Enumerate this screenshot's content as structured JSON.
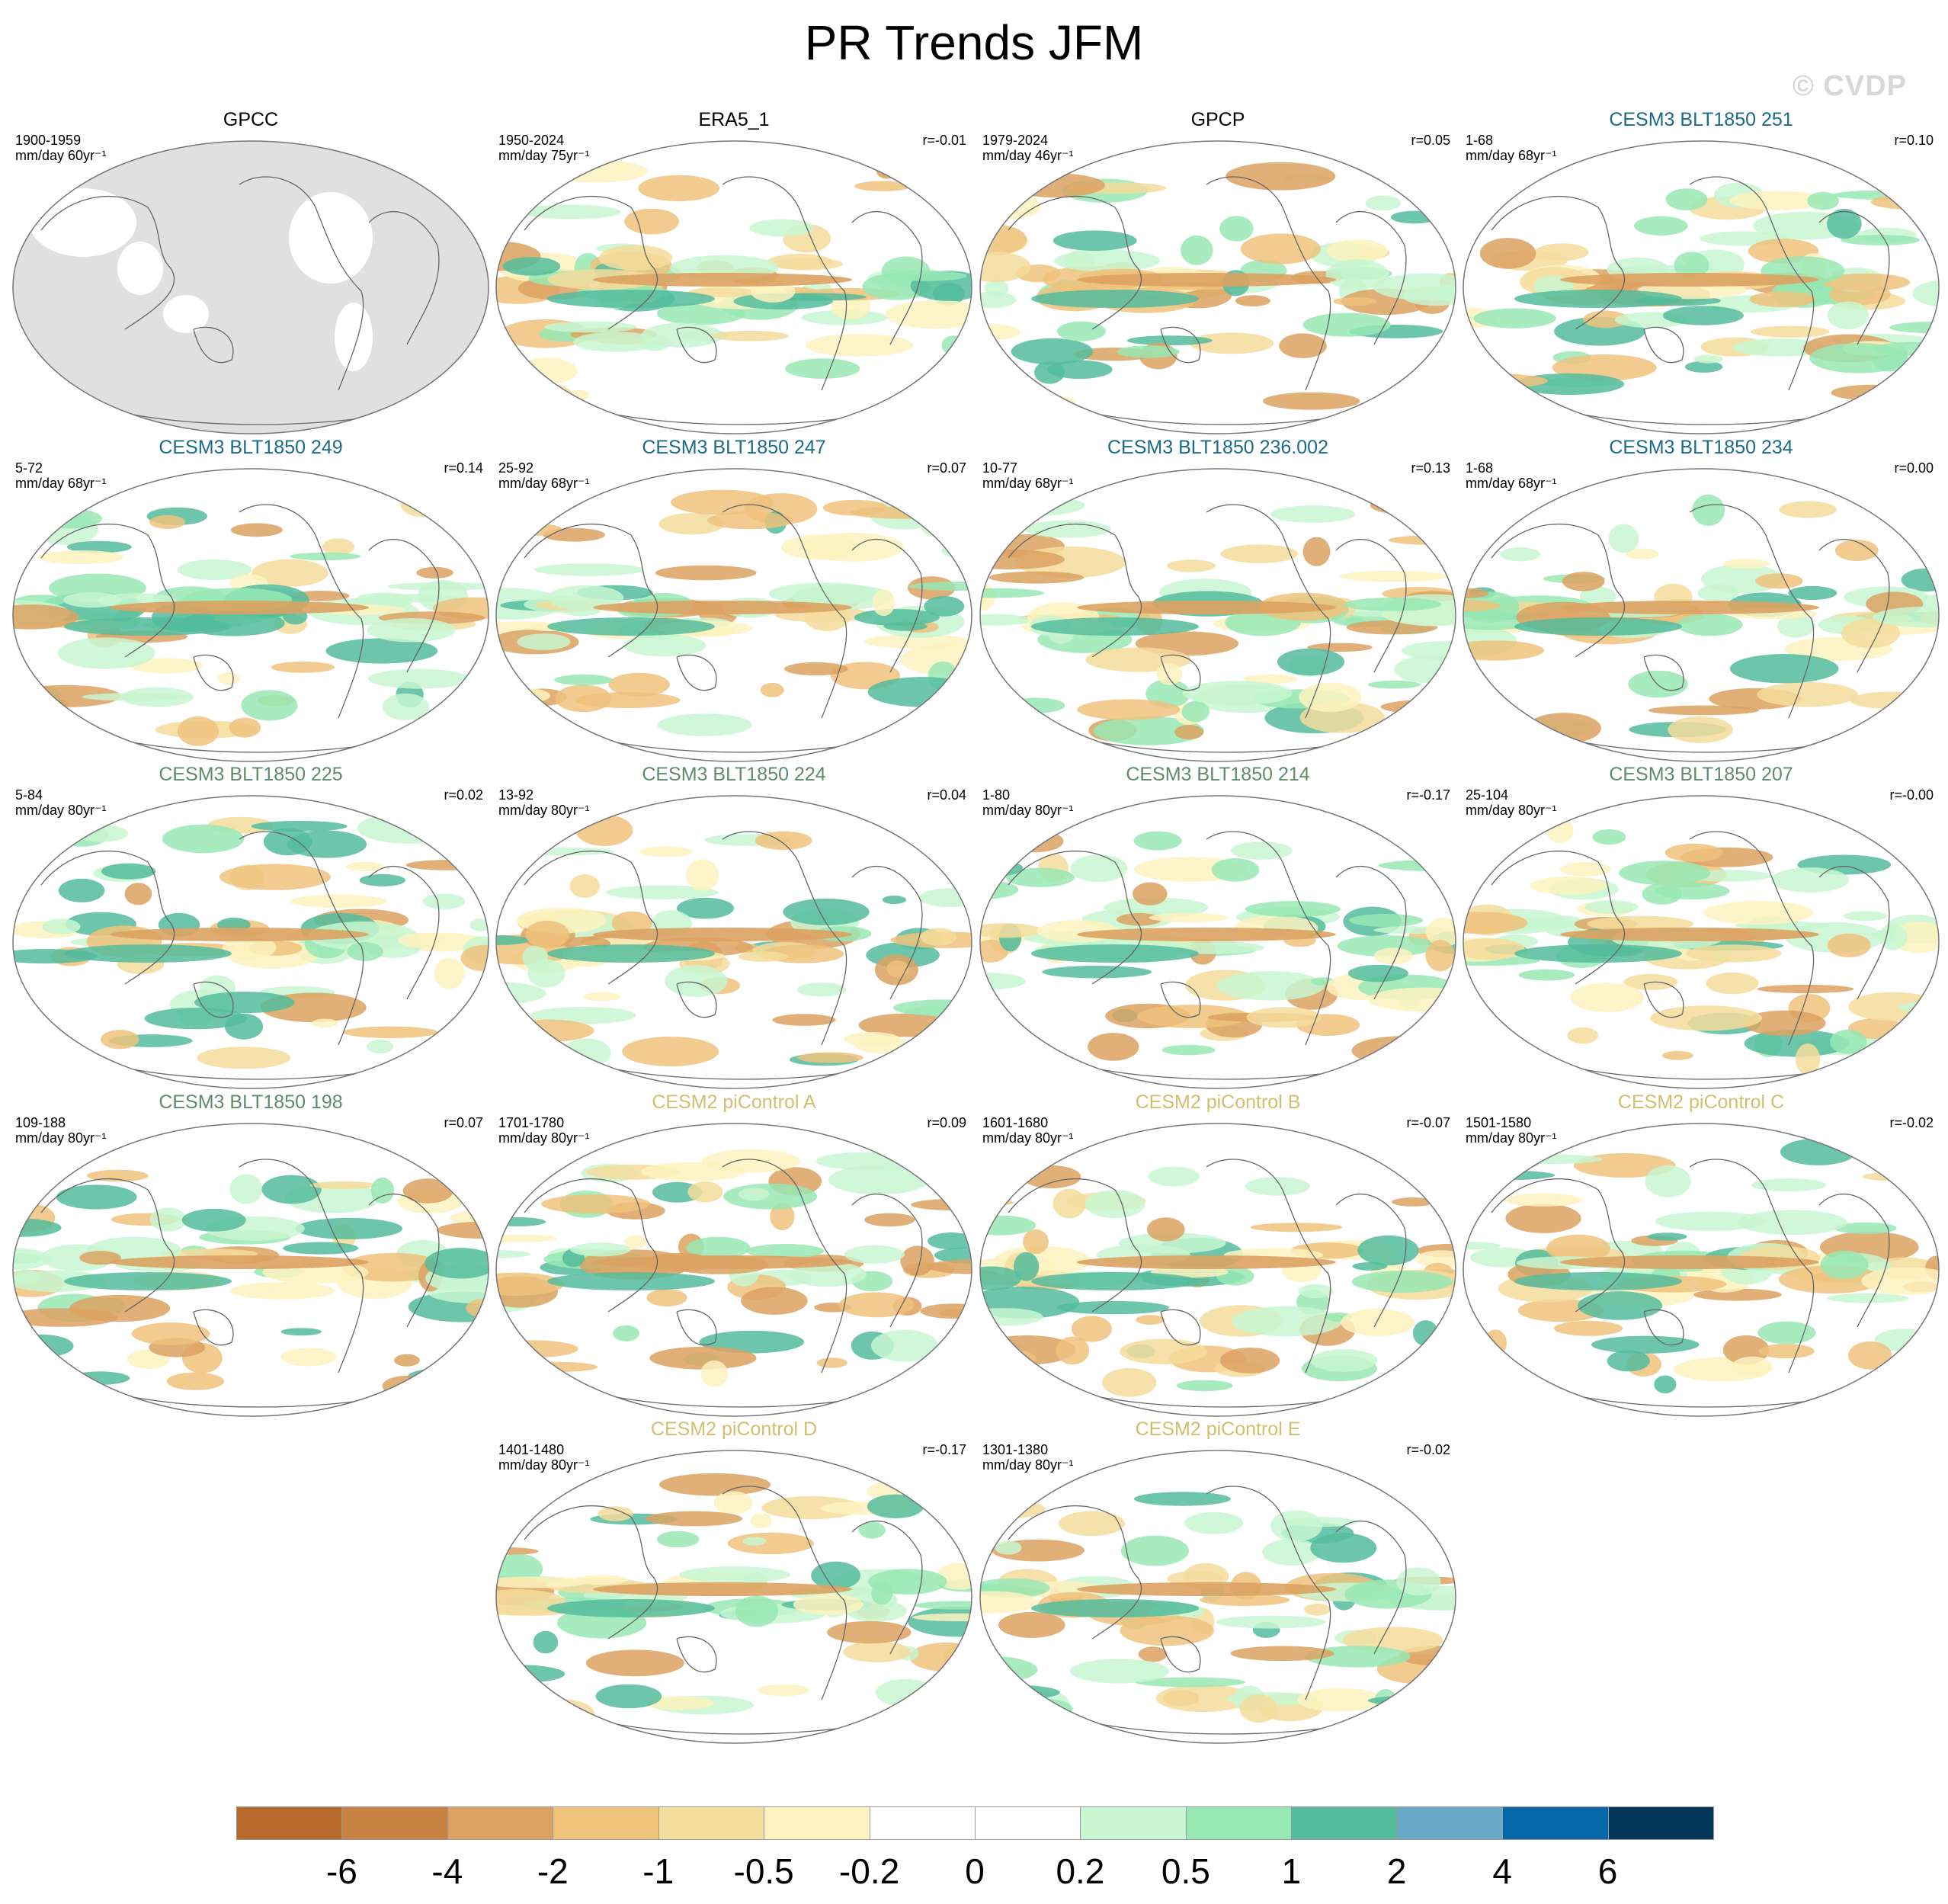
{
  "figure": {
    "title": "PR Trends JFM",
    "watermark": "© CVDP"
  },
  "panels": [
    {
      "title": "GPCC",
      "title_color": "#000000",
      "years": "1900-1959",
      "units": "mm/day 60yr⁻¹",
      "corr": "",
      "no_data": true,
      "seed": 11
    },
    {
      "title": "ERA5_1",
      "title_color": "#000000",
      "years": "1950-2024",
      "units": "mm/day 75yr⁻¹",
      "corr": "r=-0.01",
      "seed": 23
    },
    {
      "title": "GPCP",
      "title_color": "#000000",
      "years": "1979-2024",
      "units": "mm/day 46yr⁻¹",
      "corr": "r=0.05",
      "seed": 37
    },
    {
      "title": "CESM3 BLT1850 251",
      "title_color": "#1a6a8a",
      "years": "1-68",
      "units": "mm/day 68yr⁻¹",
      "corr": "r=0.10",
      "seed": 41
    },
    {
      "title": "CESM3 BLT1850 249",
      "title_color": "#1a6a8a",
      "years": "5-72",
      "units": "mm/day 68yr⁻¹",
      "corr": "r=0.14",
      "seed": 53
    },
    {
      "title": "CESM3 BLT1850 247",
      "title_color": "#1a6a8a",
      "years": "25-92",
      "units": "mm/day 68yr⁻¹",
      "corr": "r=0.07",
      "seed": 61
    },
    {
      "title": "CESM3 BLT1850 236.002",
      "title_color": "#1a6a8a",
      "years": "10-77",
      "units": "mm/day 68yr⁻¹",
      "corr": "r=0.13",
      "seed": 73
    },
    {
      "title": "CESM3 BLT1850 234",
      "title_color": "#1a6a8a",
      "years": "1-68",
      "units": "mm/day 68yr⁻¹",
      "corr": "r=0.00",
      "seed": 89
    },
    {
      "title": "CESM3 BLT1850 225",
      "title_color": "#5e8c6a",
      "years": "5-84",
      "units": "mm/day 80yr⁻¹",
      "corr": "r=0.02",
      "seed": 97
    },
    {
      "title": "CESM3 BLT1850 224",
      "title_color": "#5e8c6a",
      "years": "13-92",
      "units": "mm/day 80yr⁻¹",
      "corr": "r=0.04",
      "seed": 103
    },
    {
      "title": "CESM3 BLT1850 214",
      "title_color": "#5e8c6a",
      "years": "1-80",
      "units": "mm/day 80yr⁻¹",
      "corr": "r=-0.17",
      "seed": 113
    },
    {
      "title": "CESM3 BLT1850 207",
      "title_color": "#5e8c6a",
      "years": "25-104",
      "units": "mm/day 80yr⁻¹",
      "corr": "r=-0.00",
      "seed": 127
    },
    {
      "title": "CESM3 BLT1850 198",
      "title_color": "#5e8c6a",
      "years": "109-188",
      "units": "mm/day 80yr⁻¹",
      "corr": "r=0.07",
      "seed": 131
    },
    {
      "title": "CESM2 piControl A",
      "title_color": "#d2bf6e",
      "years": "1701-1780",
      "units": "mm/day 80yr⁻¹",
      "corr": "r=0.09",
      "seed": 139
    },
    {
      "title": "CESM2 piControl B",
      "title_color": "#d2bf6e",
      "years": "1601-1680",
      "units": "mm/day 80yr⁻¹",
      "corr": "r=-0.07",
      "seed": 149
    },
    {
      "title": "CESM2 piControl C",
      "title_color": "#d2bf6e",
      "years": "1501-1580",
      "units": "mm/day 80yr⁻¹",
      "corr": "r=-0.02",
      "seed": 151
    },
    {
      "title": "CESM2 piControl D",
      "title_color": "#d2bf6e",
      "years": "1401-1480",
      "units": "mm/day 80yr⁻¹",
      "corr": "r=-0.17",
      "seed": 163
    },
    {
      "title": "CESM2 piControl E",
      "title_color": "#d2bf6e",
      "years": "1301-1380",
      "units": "mm/day 80yr⁻¹",
      "corr": "r=-0.02",
      "seed": 173
    }
  ],
  "colorbar": {
    "labels": [
      "-6",
      "-4",
      "-2",
      "-1",
      "-0.5",
      "-0.2",
      "0",
      "0.2",
      "0.5",
      "1",
      "2",
      "4",
      "6"
    ],
    "colors": [
      "#b5692b",
      "#c98444",
      "#dca262",
      "#efc27c",
      "#f4dc9c",
      "#fdf2c0",
      "#ffffff",
      "#ffffff",
      "#c8f6d0",
      "#98e8b4",
      "#54bc9c",
      "#6aa8c8",
      "#0668a8",
      "#04385a"
    ]
  }
}
